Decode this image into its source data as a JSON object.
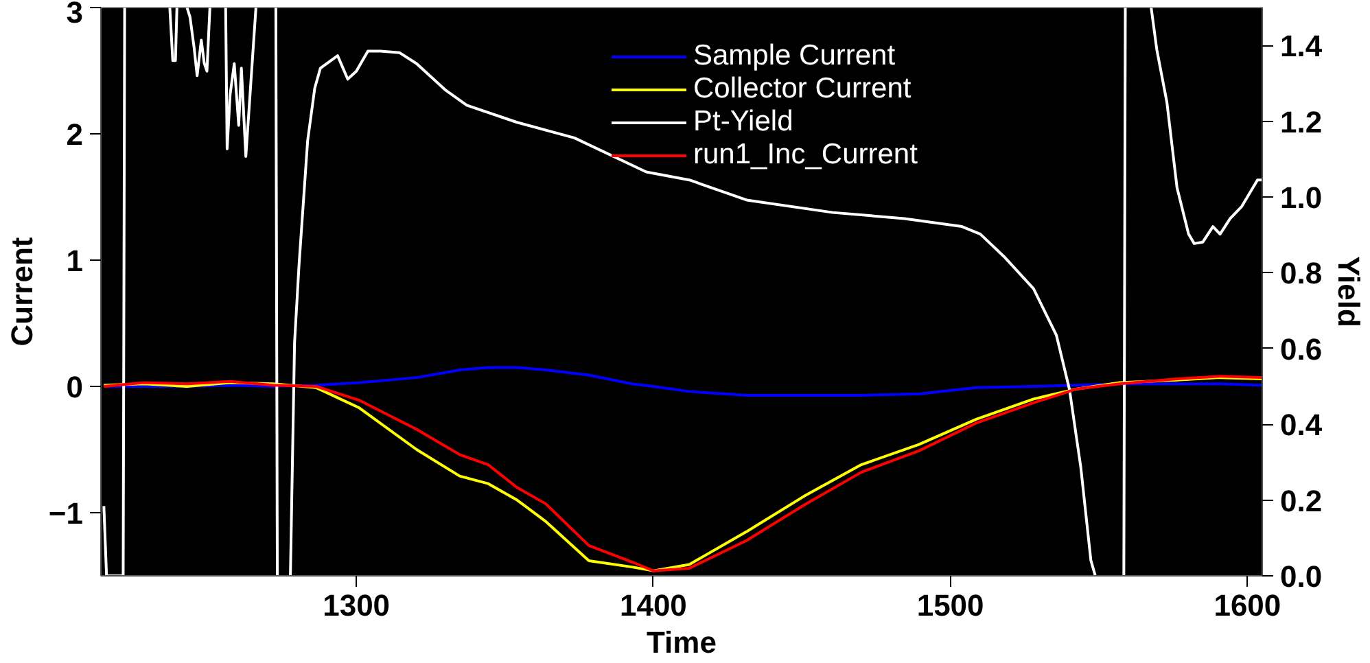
{
  "chart_data": {
    "type": "line",
    "xlabel": "Time",
    "ylabel": "Current",
    "y2label": "Yield",
    "xlim": [
      1214,
      1605
    ],
    "xticks": [
      1300,
      1400,
      1500,
      1600
    ],
    "ylim": [
      -1.5,
      3
    ],
    "yticks": [
      -1,
      0,
      1,
      2,
      3
    ],
    "y2lim": [
      0,
      1.5
    ],
    "y2ticks": [
      {
        "value": 0,
        "label": "0.0"
      },
      0.2,
      0.4,
      0.6,
      0.8,
      {
        "value": 1,
        "label": "1.0"
      },
      1.2,
      1.4
    ],
    "x": [
      1215.0,
      1228.5,
      1243.0,
      1257.5,
      1272.0,
      1286.5,
      1301.0,
      1320.3,
      1334.8,
      1344.4,
      1354.1,
      1363.8,
      1378.3,
      1392.8,
      1400.0,
      1412.1,
      1431.4,
      1450.7,
      1470.0,
      1489.4,
      1508.7,
      1528.0,
      1542.5,
      1557.0,
      1576.3,
      1590.8,
      1604.8
    ],
    "series": [
      {
        "name": "Sample Current",
        "color": "#0000ff",
        "values": [
          0.0,
          0.0,
          0.0,
          0.01,
          0.0,
          0.01,
          0.03,
          0.07,
          0.13,
          0.15,
          0.15,
          0.13,
          0.09,
          0.02,
          0.0,
          -0.04,
          -0.07,
          -0.07,
          -0.07,
          -0.06,
          -0.01,
          0.0,
          0.01,
          0.02,
          0.02,
          0.02,
          0.01
        ]
      },
      {
        "name": "Collector Current",
        "color": "#ffff00",
        "values": [
          0.01,
          0.02,
          0.0,
          0.03,
          0.02,
          -0.01,
          -0.17,
          -0.5,
          -0.71,
          -0.77,
          -0.9,
          -1.07,
          -1.38,
          -1.43,
          -1.46,
          -1.41,
          -1.15,
          -0.87,
          -0.62,
          -0.46,
          -0.26,
          -0.1,
          -0.02,
          0.03,
          0.05,
          0.07,
          0.06
        ]
      },
      {
        "name": "Pt-Yield",
        "color": "#ffffff",
        "axis": "y2",
        "x": [
          1215.0,
          1215.9,
          1221.5,
          1222.0,
          null,
          1237.2,
          1238.2,
          1239.1,
          1239.6,
          null,
          1243.0,
          1244.0,
          1245.4,
          1246.4,
          1247.8,
          1248.8,
          1249.7,
          1250.7,
          null,
          1256.0,
          1256.5,
          1257.5,
          1258.9,
          1260.4,
          1261.3,
          1262.8,
          1266.2,
          null,
          1272.9,
          1273.4,
          null,
          1277.8,
          1279.2,
          1280.7,
          1283.6,
          1286.0,
          1287.9,
          1293.7,
          1297.1,
          1300.0,
          1303.9,
          1308.2,
          1314.5,
          1320.3,
          1329.9,
          1337.2,
          1354.1,
          1373.4,
          1397.6,
          1412.1,
          1431.4,
          1460.4,
          1484.5,
          1503.9,
          1510.1,
          1518.4,
          1528.0,
          1535.7,
          1540.1,
          1543.9,
          1547.3,
          1548.8,
          null,
          1558.4,
          1558.9,
          null,
          1567.6,
          1569.5,
          1572.9,
          1576.3,
          1580.2,
          1582.1,
          1585.0,
          1588.4,
          1590.8,
          1594.2,
          1598.1,
          1603.4,
          1604.8
        ],
        "values": [
          0.184,
          0,
          0,
          1.5,
          null,
          1.5,
          1.36,
          1.36,
          1.5,
          null,
          1.5,
          1.475,
          1.393,
          1.32,
          1.414,
          1.353,
          1.332,
          1.5,
          null,
          1.5,
          1.127,
          1.27,
          1.352,
          1.189,
          1.34,
          1.107,
          1.5,
          null,
          1.5,
          0,
          null,
          0,
          0.615,
          0.82,
          1.148,
          1.287,
          1.34,
          1.373,
          1.311,
          1.332,
          1.385,
          1.385,
          1.381,
          1.352,
          1.283,
          1.242,
          1.197,
          1.156,
          1.066,
          1.045,
          0.992,
          0.959,
          0.943,
          0.922,
          0.902,
          0.84,
          0.758,
          0.635,
          0.492,
          0.287,
          0.041,
          0,
          null,
          0,
          1.5,
          null,
          1.5,
          1.389,
          1.25,
          1.025,
          0.902,
          0.877,
          0.881,
          0.922,
          0.902,
          0.943,
          0.975,
          1.045,
          1.045
        ]
      },
      {
        "name": "run1_Inc_Current",
        "color": "#ff0000",
        "values": [
          0.0,
          0.03,
          0.02,
          0.04,
          0.01,
          0.0,
          -0.11,
          -0.34,
          -0.54,
          -0.62,
          -0.8,
          -0.93,
          -1.26,
          -1.39,
          -1.46,
          -1.44,
          -1.22,
          -0.94,
          -0.68,
          -0.51,
          -0.29,
          -0.13,
          -0.02,
          0.02,
          0.06,
          0.08,
          0.07
        ]
      }
    ],
    "legend": "top right",
    "grid": false,
    "line_style": "solid"
  }
}
